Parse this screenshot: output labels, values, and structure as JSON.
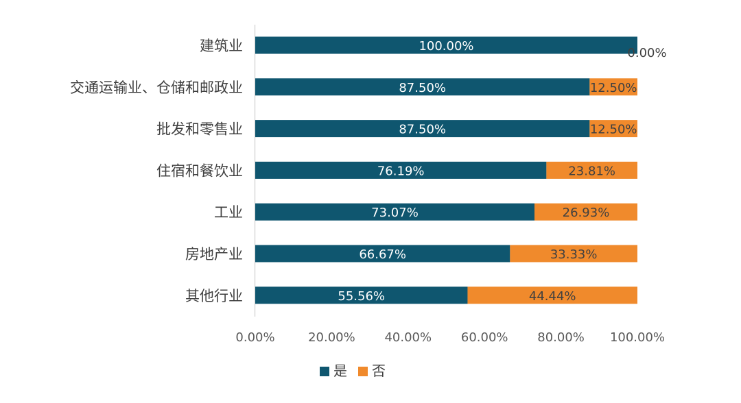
{
  "chart_data": {
    "type": "bar",
    "orientation": "horizontal",
    "stacked": true,
    "categories": [
      "建筑业",
      "交通运输业、仓储和邮政业",
      "批发和零售业",
      "住宿和餐饮业",
      "工业",
      "房地产业",
      "其他行业"
    ],
    "series": [
      {
        "name": "是",
        "color": "#0f566f",
        "values": [
          100.0,
          87.5,
          87.5,
          76.19,
          73.07,
          66.67,
          55.56
        ],
        "labels": [
          "100.00%",
          "87.50%",
          "87.50%",
          "76.19%",
          "73.07%",
          "66.67%",
          "55.56%"
        ]
      },
      {
        "name": "否",
        "color": "#f08a2c",
        "values": [
          0.0,
          12.5,
          12.5,
          23.81,
          26.93,
          33.33,
          44.44
        ],
        "labels": [
          "0.00%",
          "12.50%",
          "12.50%",
          "23.81%",
          "26.93%",
          "33.33%",
          "44.44%"
        ]
      }
    ],
    "x_ticks": [
      "0.00%",
      "20.00%",
      "40.00%",
      "60.00%",
      "80.00%",
      "100.00%"
    ],
    "xlim": [
      0,
      100
    ],
    "grid": false,
    "legend_position": "bottom-center"
  }
}
